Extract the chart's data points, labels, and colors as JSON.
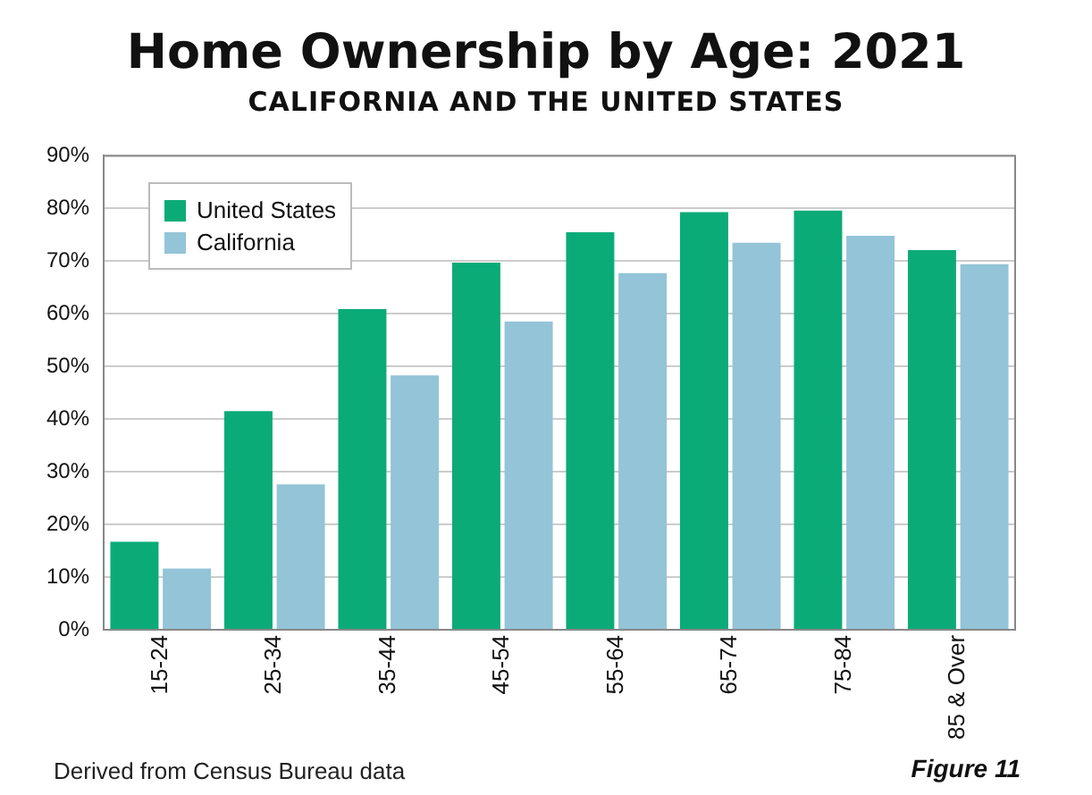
{
  "chart_data": {
    "type": "bar",
    "title": "Home Ownership by Age: 2021",
    "subtitle": "CALIFORNIA AND THE UNITED STATES",
    "categories": [
      "15-24",
      "25-34",
      "35-44",
      "45-54",
      "55-64",
      "65-74",
      "75-84",
      "85 & Over"
    ],
    "series": [
      {
        "name": "United States",
        "color": "#0bab78",
        "values": [
          16.7,
          41.5,
          60.9,
          69.7,
          75.5,
          79.3,
          79.6,
          72.1
        ]
      },
      {
        "name": "California",
        "color": "#93c4d7",
        "values": [
          11.6,
          27.6,
          48.3,
          58.5,
          67.7,
          73.5,
          74.8,
          69.4
        ]
      }
    ],
    "ylim": [
      0,
      90
    ],
    "yticks": [
      {
        "value": 0,
        "label": "0%"
      },
      {
        "value": 10,
        "label": "10%"
      },
      {
        "value": 20,
        "label": "20%"
      },
      {
        "value": 30,
        "label": "30%"
      },
      {
        "value": 40,
        "label": "40%"
      },
      {
        "value": 50,
        "label": "50%"
      },
      {
        "value": 60,
        "label": "60%"
      },
      {
        "value": 70,
        "label": "70%"
      },
      {
        "value": 80,
        "label": "80%"
      },
      {
        "value": 90,
        "label": "90%"
      }
    ],
    "grid": "y",
    "legend": "top left",
    "annotations": [
      "Derived from Census Bureau data",
      "Figure 11"
    ]
  }
}
